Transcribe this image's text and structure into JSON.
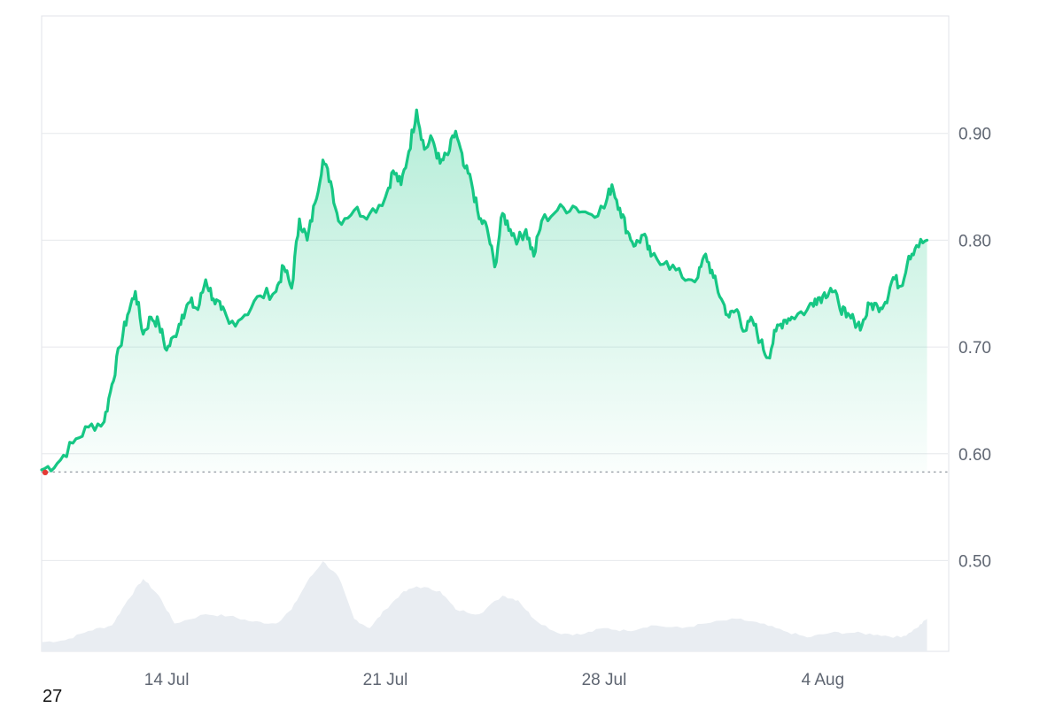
{
  "corner_text": "27",
  "colors": {
    "price_line": "#16c784",
    "fill_top": "#16c784",
    "volume": "#e9edf2",
    "grid": "#e6e8ec",
    "baseline": "#9aa0a8",
    "start_marker": "#e53935",
    "axis_text": "#5f6672",
    "frame": "#e0e3e8"
  },
  "chart_data": {
    "type": "area",
    "title": "",
    "xlabel": "",
    "ylabel": "",
    "x_unit": "date",
    "x_range": [
      "2024-07-10",
      "2024-08-08"
    ],
    "ylim": [
      0.415,
      1.01
    ],
    "y_ticks": [
      0.5,
      0.6,
      0.7,
      0.8,
      0.9
    ],
    "y_tick_labels": [
      "0.50",
      "0.60",
      "0.70",
      "0.80",
      "0.90"
    ],
    "x_ticks": [
      "2024-07-14",
      "2024-07-21",
      "2024-07-28",
      "2024-08-04"
    ],
    "x_tick_labels": [
      "14 Jul",
      "21 Jul",
      "28 Jul",
      "4 Aug"
    ],
    "grid": true,
    "y_axis_side": "right",
    "baseline_value": 0.583,
    "series": [
      {
        "kind": "price",
        "points": [
          [
            "2024-07-10 00:00",
            0.585
          ],
          [
            "2024-07-10 12:00",
            0.591
          ],
          [
            "2024-07-11 00:00",
            0.61
          ],
          [
            "2024-07-11 12:00",
            0.625
          ],
          [
            "2024-07-12 00:00",
            0.63
          ],
          [
            "2024-07-12 06:00",
            0.665
          ],
          [
            "2024-07-12 12:00",
            0.7
          ],
          [
            "2024-07-12 18:00",
            0.73
          ],
          [
            "2024-07-13 00:00",
            0.752
          ],
          [
            "2024-07-13 06:00",
            0.712
          ],
          [
            "2024-07-13 12:00",
            0.728
          ],
          [
            "2024-07-13 18:00",
            0.722
          ],
          [
            "2024-07-14 00:00",
            0.697
          ],
          [
            "2024-07-14 06:00",
            0.71
          ],
          [
            "2024-07-14 12:00",
            0.73
          ],
          [
            "2024-07-14 18:00",
            0.742
          ],
          [
            "2024-07-15 00:00",
            0.735
          ],
          [
            "2024-07-15 06:00",
            0.763
          ],
          [
            "2024-07-15 12:00",
            0.745
          ],
          [
            "2024-07-15 18:00",
            0.735
          ],
          [
            "2024-07-16 00:00",
            0.722
          ],
          [
            "2024-07-16 12:00",
            0.73
          ],
          [
            "2024-07-17 00:00",
            0.748
          ],
          [
            "2024-07-17 12:00",
            0.752
          ],
          [
            "2024-07-17 18:00",
            0.775
          ],
          [
            "2024-07-18 00:00",
            0.755
          ],
          [
            "2024-07-18 06:00",
            0.82
          ],
          [
            "2024-07-18 12:00",
            0.8
          ],
          [
            "2024-07-18 18:00",
            0.835
          ],
          [
            "2024-07-19 00:00",
            0.875
          ],
          [
            "2024-07-19 06:00",
            0.855
          ],
          [
            "2024-07-19 12:00",
            0.818
          ],
          [
            "2024-07-20 00:00",
            0.828
          ],
          [
            "2024-07-20 12:00",
            0.825
          ],
          [
            "2024-07-21 00:00",
            0.84
          ],
          [
            "2024-07-21 06:00",
            0.865
          ],
          [
            "2024-07-21 12:00",
            0.852
          ],
          [
            "2024-07-21 18:00",
            0.883
          ],
          [
            "2024-07-22 00:00",
            0.922
          ],
          [
            "2024-07-22 06:00",
            0.885
          ],
          [
            "2024-07-22 12:00",
            0.895
          ],
          [
            "2024-07-22 18:00",
            0.872
          ],
          [
            "2024-07-23 00:00",
            0.88
          ],
          [
            "2024-07-23 06:00",
            0.902
          ],
          [
            "2024-07-23 12:00",
            0.87
          ],
          [
            "2024-07-23 18:00",
            0.855
          ],
          [
            "2024-07-24 00:00",
            0.82
          ],
          [
            "2024-07-24 06:00",
            0.812
          ],
          [
            "2024-07-24 12:00",
            0.775
          ],
          [
            "2024-07-24 18:00",
            0.825
          ],
          [
            "2024-07-25 00:00",
            0.81
          ],
          [
            "2024-07-25 06:00",
            0.8
          ],
          [
            "2024-07-25 12:00",
            0.81
          ],
          [
            "2024-07-25 18:00",
            0.785
          ],
          [
            "2024-07-26 00:00",
            0.818
          ],
          [
            "2024-07-26 12:00",
            0.828
          ],
          [
            "2024-07-27 00:00",
            0.832
          ],
          [
            "2024-07-27 12:00",
            0.825
          ],
          [
            "2024-07-28 00:00",
            0.83
          ],
          [
            "2024-07-28 06:00",
            0.852
          ],
          [
            "2024-07-28 12:00",
            0.83
          ],
          [
            "2024-07-28 18:00",
            0.808
          ],
          [
            "2024-07-29 00:00",
            0.795
          ],
          [
            "2024-07-29 06:00",
            0.805
          ],
          [
            "2024-07-29 12:00",
            0.785
          ],
          [
            "2024-07-30 00:00",
            0.78
          ],
          [
            "2024-07-30 12:00",
            0.765
          ],
          [
            "2024-07-31 00:00",
            0.765
          ],
          [
            "2024-07-31 06:00",
            0.787
          ],
          [
            "2024-07-31 12:00",
            0.765
          ],
          [
            "2024-07-31 18:00",
            0.745
          ],
          [
            "2024-08-01 00:00",
            0.728
          ],
          [
            "2024-08-01 06:00",
            0.735
          ],
          [
            "2024-08-01 12:00",
            0.715
          ],
          [
            "2024-08-01 18:00",
            0.725
          ],
          [
            "2024-08-02 00:00",
            0.705
          ],
          [
            "2024-08-02 06:00",
            0.69
          ],
          [
            "2024-08-02 12:00",
            0.715
          ],
          [
            "2024-08-02 18:00",
            0.725
          ],
          [
            "2024-08-03 00:00",
            0.728
          ],
          [
            "2024-08-03 12:00",
            0.735
          ],
          [
            "2024-08-03 18:00",
            0.745
          ],
          [
            "2024-08-04 00:00",
            0.748
          ],
          [
            "2024-08-04 06:00",
            0.755
          ],
          [
            "2024-08-04 12:00",
            0.742
          ],
          [
            "2024-08-04 18:00",
            0.728
          ],
          [
            "2024-08-05 00:00",
            0.725
          ],
          [
            "2024-08-05 06:00",
            0.72
          ],
          [
            "2024-08-05 12:00",
            0.74
          ],
          [
            "2024-08-05 18:00",
            0.738
          ],
          [
            "2024-08-06 00:00",
            0.742
          ],
          [
            "2024-08-06 06:00",
            0.765
          ],
          [
            "2024-08-06 12:00",
            0.757
          ],
          [
            "2024-08-06 18:00",
            0.785
          ],
          [
            "2024-08-07 00:00",
            0.795
          ],
          [
            "2024-08-07 08:00",
            0.8
          ]
        ]
      },
      {
        "kind": "volume",
        "relative_heights": [
          [
            "2024-07-10 00:00",
            0.1
          ],
          [
            "2024-07-10 18:00",
            0.12
          ],
          [
            "2024-07-11 12:00",
            0.22
          ],
          [
            "2024-07-12 06:00",
            0.28
          ],
          [
            "2024-07-12 18:00",
            0.55
          ],
          [
            "2024-07-13 06:00",
            0.78
          ],
          [
            "2024-07-13 18:00",
            0.6
          ],
          [
            "2024-07-14 06:00",
            0.3
          ],
          [
            "2024-07-15 06:00",
            0.4
          ],
          [
            "2024-07-16 00:00",
            0.38
          ],
          [
            "2024-07-16 18:00",
            0.32
          ],
          [
            "2024-07-17 12:00",
            0.3
          ],
          [
            "2024-07-18 00:00",
            0.45
          ],
          [
            "2024-07-18 12:00",
            0.75
          ],
          [
            "2024-07-19 00:00",
            0.97
          ],
          [
            "2024-07-19 12:00",
            0.8
          ],
          [
            "2024-07-20 00:00",
            0.35
          ],
          [
            "2024-07-20 12:00",
            0.25
          ],
          [
            "2024-07-21 00:00",
            0.45
          ],
          [
            "2024-07-21 12:00",
            0.62
          ],
          [
            "2024-07-22 00:00",
            0.7
          ],
          [
            "2024-07-22 18:00",
            0.65
          ],
          [
            "2024-07-23 06:00",
            0.45
          ],
          [
            "2024-07-24 00:00",
            0.4
          ],
          [
            "2024-07-24 18:00",
            0.6
          ],
          [
            "2024-07-25 06:00",
            0.55
          ],
          [
            "2024-07-25 18:00",
            0.35
          ],
          [
            "2024-07-26 12:00",
            0.2
          ],
          [
            "2024-07-27 06:00",
            0.18
          ],
          [
            "2024-07-28 00:00",
            0.25
          ],
          [
            "2024-07-28 18:00",
            0.22
          ],
          [
            "2024-07-29 12:00",
            0.28
          ],
          [
            "2024-07-30 12:00",
            0.25
          ],
          [
            "2024-07-31 06:00",
            0.3
          ],
          [
            "2024-08-01 06:00",
            0.35
          ],
          [
            "2024-08-02 00:00",
            0.3
          ],
          [
            "2024-08-02 18:00",
            0.22
          ],
          [
            "2024-08-03 12:00",
            0.15
          ],
          [
            "2024-08-04 06:00",
            0.2
          ],
          [
            "2024-08-05 00:00",
            0.2
          ],
          [
            "2024-08-05 18:00",
            0.18
          ],
          [
            "2024-08-06 12:00",
            0.15
          ],
          [
            "2024-08-07 00:00",
            0.25
          ],
          [
            "2024-08-07 08:00",
            0.35
          ]
        ]
      }
    ]
  }
}
